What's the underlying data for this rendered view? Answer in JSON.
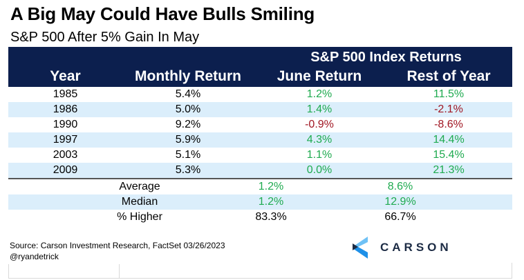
{
  "title": "A Big May Could Have Bulls Smiling",
  "subtitle": "S&P 500 After 5% Gain In May",
  "table": {
    "group_header": "S&P 500 Index Returns",
    "columns": [
      "Year",
      "Monthly Return",
      "June Return",
      "Rest of Year"
    ],
    "rows": [
      {
        "year": "1985",
        "monthly": "5.4%",
        "june": "1.2%",
        "rest": "11.5%"
      },
      {
        "year": "1986",
        "monthly": "5.0%",
        "june": "1.4%",
        "rest": "-2.1%"
      },
      {
        "year": "1990",
        "monthly": "9.2%",
        "june": "-0.9%",
        "rest": "-8.6%"
      },
      {
        "year": "1997",
        "monthly": "5.9%",
        "june": "4.3%",
        "rest": "14.4%"
      },
      {
        "year": "2003",
        "monthly": "5.1%",
        "june": "1.1%",
        "rest": "15.4%"
      },
      {
        "year": "2009",
        "monthly": "5.3%",
        "june": "0.0%",
        "rest": "21.3%"
      }
    ],
    "summary": [
      {
        "label": "Average",
        "june": "1.2%",
        "rest": "8.6%"
      },
      {
        "label": "Median",
        "june": "1.2%",
        "rest": "12.9%"
      },
      {
        "label": "% Higher",
        "june": "83.3%",
        "rest": "66.7%"
      }
    ]
  },
  "colors": {
    "header_bg": "#0c1f4e",
    "alt_row_bg": "#dbeefb",
    "positive": "#1eaa4f",
    "negative": "#a01622"
  },
  "footer": {
    "source": "Source: Carson Investment Research, FactSet 03/26/2023",
    "handle": "@ryandetrick"
  },
  "logo": {
    "icon": "carson-chevron-logo-icon",
    "text": "CARSON"
  }
}
